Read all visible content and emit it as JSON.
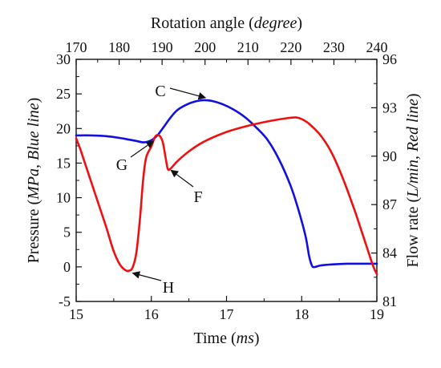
{
  "chart_data": {
    "type": "line",
    "x": {
      "label_prefix": "Time (",
      "label_unit": "ms",
      "label_suffix": ")",
      "range": [
        15,
        19
      ],
      "ticks": [
        15,
        16,
        17,
        18,
        19
      ]
    },
    "x_top": {
      "label_prefix": "Rotation angle (",
      "label_unit": "degree",
      "label_suffix": ")",
      "range": [
        170,
        240
      ],
      "ticks": [
        170,
        180,
        190,
        200,
        210,
        220,
        230,
        240
      ]
    },
    "y_left": {
      "label_prefix": "Pressure (",
      "label_unit": "MPa, Blue line",
      "label_suffix": ")",
      "range": [
        -5,
        30
      ],
      "ticks": [
        -5,
        0,
        5,
        10,
        15,
        20,
        25,
        30
      ]
    },
    "y_right": {
      "label_prefix": "Flow rate (",
      "label_unit": "L/min, Red line",
      "label_suffix": ")",
      "range": [
        81,
        96
      ],
      "ticks": [
        81,
        84,
        87,
        90,
        93,
        96
      ]
    },
    "series": [
      {
        "axis": "left",
        "color": "#1010e0",
        "points": [
          [
            15.0,
            19.0
          ],
          [
            15.2,
            19.0
          ],
          [
            15.4,
            18.9
          ],
          [
            15.6,
            18.6
          ],
          [
            15.7,
            18.4
          ],
          [
            15.8,
            18.2
          ],
          [
            15.9,
            18.0
          ],
          [
            16.0,
            18.3
          ],
          [
            16.08,
            19.0
          ],
          [
            16.15,
            20.0
          ],
          [
            16.25,
            21.5
          ],
          [
            16.35,
            22.7
          ],
          [
            16.5,
            23.6
          ],
          [
            16.62,
            24.0
          ],
          [
            16.7,
            24.1
          ],
          [
            16.8,
            24.0
          ],
          [
            16.95,
            23.5
          ],
          [
            17.1,
            22.7
          ],
          [
            17.25,
            21.6
          ],
          [
            17.4,
            20.1
          ],
          [
            17.55,
            18.3
          ],
          [
            17.7,
            15.5
          ],
          [
            17.85,
            11.8
          ],
          [
            17.95,
            8.5
          ],
          [
            18.05,
            4.5
          ],
          [
            18.1,
            1.5
          ],
          [
            18.14,
            0.1
          ],
          [
            18.18,
            0.0
          ],
          [
            18.25,
            0.2
          ],
          [
            18.4,
            0.35
          ],
          [
            18.6,
            0.45
          ],
          [
            18.8,
            0.45
          ],
          [
            19.0,
            0.45
          ]
        ]
      },
      {
        "axis": "right",
        "color": "#ee1010",
        "points": [
          [
            15.0,
            91.1
          ],
          [
            15.05,
            90.5
          ],
          [
            15.1,
            89.8
          ],
          [
            15.2,
            88.4
          ],
          [
            15.3,
            87.0
          ],
          [
            15.4,
            85.6
          ],
          [
            15.5,
            84.1
          ],
          [
            15.58,
            83.3
          ],
          [
            15.65,
            82.95
          ],
          [
            15.7,
            82.9
          ],
          [
            15.75,
            83.1
          ],
          [
            15.8,
            84.0
          ],
          [
            15.85,
            86.2
          ],
          [
            15.89,
            88.5
          ],
          [
            15.93,
            89.9
          ],
          [
            16.0,
            90.6
          ],
          [
            16.05,
            91.2
          ],
          [
            16.1,
            91.3
          ],
          [
            16.15,
            90.9
          ],
          [
            16.19,
            89.9
          ],
          [
            16.22,
            89.2
          ],
          [
            16.26,
            89.25
          ],
          [
            16.35,
            89.7
          ],
          [
            16.5,
            90.3
          ],
          [
            16.7,
            90.9
          ],
          [
            17.0,
            91.5
          ],
          [
            17.3,
            91.9
          ],
          [
            17.6,
            92.2
          ],
          [
            17.8,
            92.35
          ],
          [
            17.92,
            92.4
          ],
          [
            18.0,
            92.3
          ],
          [
            18.1,
            92.0
          ],
          [
            18.25,
            91.3
          ],
          [
            18.4,
            90.2
          ],
          [
            18.55,
            88.6
          ],
          [
            18.7,
            86.7
          ],
          [
            18.85,
            84.6
          ],
          [
            18.95,
            83.2
          ],
          [
            19.0,
            82.7
          ]
        ]
      }
    ],
    "annotations": [
      {
        "text": "C",
        "target_x": 16.72,
        "target_y": 24.1,
        "axis": "left"
      },
      {
        "text": "G",
        "target_x": 16.06,
        "target_y": 18.4,
        "axis": "left"
      },
      {
        "text": "F",
        "target_x": 16.24,
        "target_y": 14.2,
        "axis": "left"
      },
      {
        "text": "H",
        "target_x": 15.72,
        "target_y": -0.9,
        "axis": "left"
      }
    ]
  }
}
